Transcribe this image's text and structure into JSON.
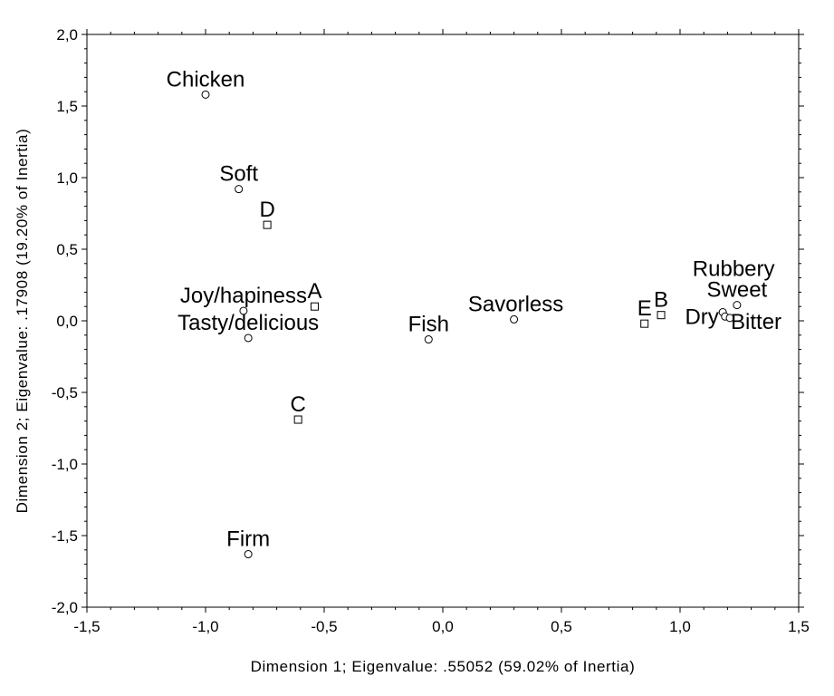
{
  "chart_data": {
    "type": "scatter",
    "title": "",
    "xlabel": "Dimension 1; Eigenvalue: .55052 (59.02% of Inertia)",
    "ylabel": "Dimension 2; Eigenvalue: .17908 (19.20% of Inertia)",
    "xlim": [
      -1.5,
      1.5
    ],
    "ylim": [
      -2.0,
      2.0
    ],
    "x_ticks": [
      {
        "value": -1.5,
        "label": "-1,5"
      },
      {
        "value": -1.0,
        "label": "-1,0"
      },
      {
        "value": -0.5,
        "label": "-0,5"
      },
      {
        "value": 0.0,
        "label": "0,0"
      },
      {
        "value": 0.5,
        "label": "0,5"
      },
      {
        "value": 1.0,
        "label": "1,0"
      },
      {
        "value": 1.5,
        "label": "1,5"
      }
    ],
    "y_ticks": [
      {
        "value": 2.0,
        "label": "2,0"
      },
      {
        "value": 1.5,
        "label": "1,5"
      },
      {
        "value": 1.0,
        "label": "1,0"
      },
      {
        "value": 0.5,
        "label": "0,5"
      },
      {
        "value": 0.0,
        "label": "0,0"
      },
      {
        "value": -0.5,
        "label": "-0,5"
      },
      {
        "value": -1.0,
        "label": "-1,0"
      },
      {
        "value": -1.5,
        "label": "-1,5"
      },
      {
        "value": -2.0,
        "label": "-2,0"
      }
    ],
    "grid": false,
    "series": [
      {
        "marker": "circle",
        "points": [
          {
            "label": "Chicken",
            "x": -1.0,
            "y": 1.58,
            "label_pos": "above"
          },
          {
            "label": "Soft",
            "x": -0.86,
            "y": 0.92,
            "label_pos": "above"
          },
          {
            "label": "Joy/hapiness",
            "x": -0.84,
            "y": 0.07,
            "label_pos": "above"
          },
          {
            "label": "Tasty/delicious",
            "x": -0.82,
            "y": -0.12,
            "label_pos": "above"
          },
          {
            "label": "Firm",
            "x": -0.82,
            "y": -1.63,
            "label_pos": "above"
          },
          {
            "label": "Fish",
            "x": -0.06,
            "y": -0.13,
            "label_pos": "above"
          },
          {
            "label": "Savorless",
            "x": 0.3,
            "y": 0.01,
            "label_pos": "above-right"
          },
          {
            "label": "Rubbery",
            "x": 1.18,
            "y": 0.06,
            "label_pos": "upper"
          },
          {
            "label": "Sweet",
            "x": 1.24,
            "y": 0.11,
            "label_pos": "above"
          },
          {
            "label": "Dry",
            "x": 1.19,
            "y": 0.03,
            "label_pos": "left"
          },
          {
            "label": "Bitter",
            "x": 1.21,
            "y": 0.02,
            "label_pos": "right"
          }
        ]
      },
      {
        "marker": "square",
        "points": [
          {
            "label": "D",
            "x": -0.74,
            "y": 0.67,
            "label_pos": "above"
          },
          {
            "label": "A",
            "x": -0.54,
            "y": 0.1,
            "label_pos": "above"
          },
          {
            "label": "C",
            "x": -0.61,
            "y": -0.69,
            "label_pos": "above"
          },
          {
            "label": "E",
            "x": 0.85,
            "y": -0.02,
            "label_pos": "above"
          },
          {
            "label": "B",
            "x": 0.92,
            "y": 0.04,
            "label_pos": "above"
          }
        ]
      }
    ]
  }
}
